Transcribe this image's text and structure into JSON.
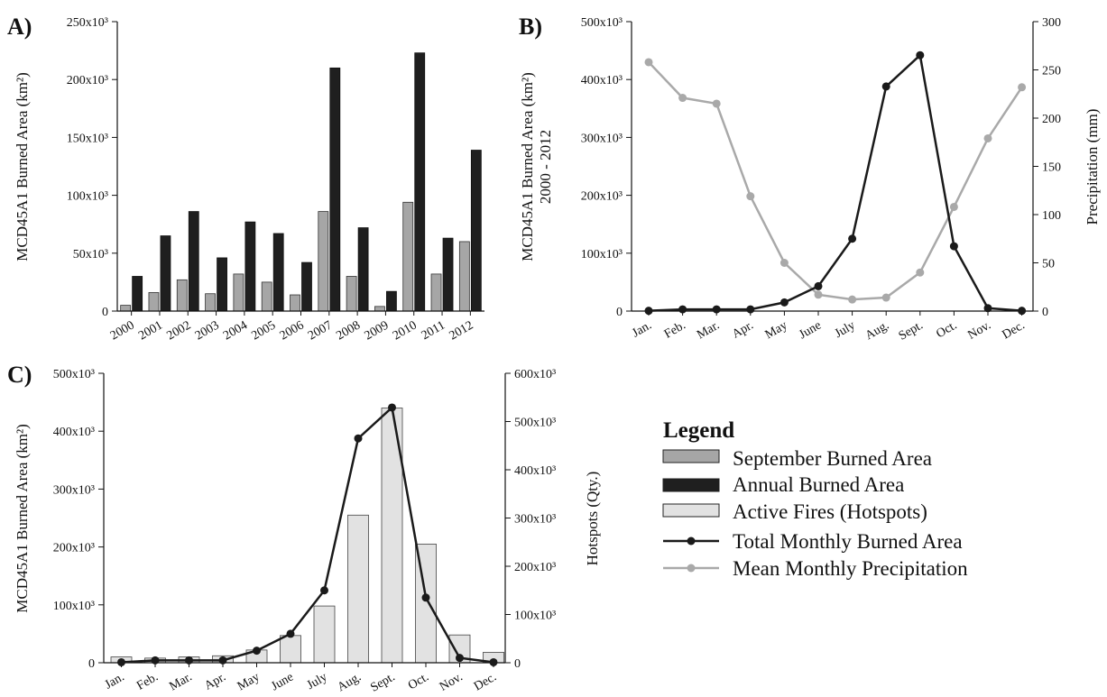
{
  "colors": {
    "september": "#a6a6a6",
    "annual": "#1f1f1f",
    "hotspots": "#e2e2e2",
    "monthly_line": "#1a1a1a",
    "precip_line": "#a9a9a9"
  },
  "legend": {
    "title": "Legend",
    "items": [
      {
        "label": "September Burned Area",
        "kind": "box",
        "color": "#a6a6a6"
      },
      {
        "label": "Annual Burned Area",
        "kind": "box",
        "color": "#1f1f1f"
      },
      {
        "label": "Active Fires (Hotspots)",
        "kind": "box",
        "color": "#e2e2e2"
      },
      {
        "label": "Total Monthly Burned Area",
        "kind": "line",
        "color": "#1a1a1a"
      },
      {
        "label": "Mean Monthly Precipitation",
        "kind": "line",
        "color": "#a9a9a9"
      }
    ]
  },
  "chart_data": [
    {
      "panel": "A)",
      "type": "bar",
      "ylabel": "MCD45A1 Burned Area (km²)",
      "yticks": [
        "0",
        "50x10³",
        "100x10³",
        "150x10³",
        "200x10³",
        "250x10³"
      ],
      "ylim": [
        0,
        250000
      ],
      "categories": [
        "2000",
        "2001",
        "2002",
        "2003",
        "2004",
        "2005",
        "2006",
        "2007",
        "2008",
        "2009",
        "2010",
        "2011",
        "2012"
      ],
      "series": [
        {
          "name": "September Burned Area",
          "values": [
            5000,
            16000,
            27000,
            15000,
            32000,
            25000,
            14000,
            86000,
            30000,
            4000,
            94000,
            32000,
            60000
          ]
        },
        {
          "name": "Annual Burned Area",
          "values": [
            30000,
            65000,
            86000,
            46000,
            77000,
            67000,
            42000,
            210000,
            72000,
            17000,
            223000,
            63000,
            139000
          ]
        }
      ]
    },
    {
      "panel": "B)",
      "type": "line",
      "ylabel": "MCD45A1 Burned Area (km²)",
      "ylabel2": "2000 - 2012",
      "y2label": "Precipitation (mm)",
      "categories": [
        "Jan.",
        "Feb.",
        "Mar.",
        "Apr.",
        "May",
        "June",
        "July",
        "Aug.",
        "Sept.",
        "Oct.",
        "Nov.",
        "Dec."
      ],
      "yticks": [
        "0",
        "100x10³",
        "200x10³",
        "300x10³",
        "400x10³",
        "500x10³"
      ],
      "ylim": [
        0,
        500000
      ],
      "y2ticks": [
        "0",
        "50",
        "100",
        "150",
        "200",
        "250",
        "300"
      ],
      "y2lim": [
        0,
        300
      ],
      "series": [
        {
          "name": "Total Monthly Burned Area",
          "axis": "left",
          "values": [
            500,
            3000,
            3000,
            3000,
            15000,
            43000,
            125000,
            388000,
            442000,
            112000,
            5000,
            500
          ]
        },
        {
          "name": "Mean Monthly Precipitation",
          "axis": "right",
          "values": [
            258,
            221,
            215,
            119,
            50,
            17,
            12,
            14,
            40,
            108,
            179,
            232
          ]
        }
      ]
    },
    {
      "panel": "C)",
      "type": "bar",
      "ylabel": "MCD45A1 Burned Area (km²)",
      "y2label": "Hotspots (Qty.)",
      "categories": [
        "Jan.",
        "Feb.",
        "Mar.",
        "Apr.",
        "May",
        "June",
        "July",
        "Aug.",
        "Sept.",
        "Oct.",
        "Nov.",
        "Dec."
      ],
      "yticks": [
        "0",
        "100x10³",
        "200x10³",
        "300x10³",
        "400x10³",
        "500x10³"
      ],
      "ylim": [
        0,
        500000
      ],
      "y2ticks": [
        "0",
        "100x10³",
        "200x10³",
        "300x10³",
        "400x10³",
        "500x10³",
        "600x10³"
      ],
      "y2lim": [
        0,
        600000
      ],
      "series": [
        {
          "name": "Active Fires (Hotspots)",
          "axis": "left",
          "kind": "bar",
          "values": [
            10000,
            8000,
            10000,
            12000,
            22000,
            47000,
            98000,
            255000,
            440000,
            205000,
            48000,
            18000
          ]
        },
        {
          "name": "Total Monthly Burned Area",
          "axis": "right",
          "kind": "line",
          "values": [
            1000,
            5000,
            5000,
            5000,
            25000,
            60000,
            150000,
            465000,
            529000,
            135000,
            10000,
            1000
          ]
        }
      ]
    }
  ]
}
